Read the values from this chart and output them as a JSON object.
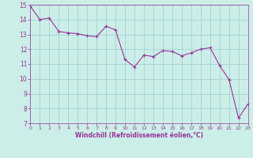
{
  "x": [
    0,
    1,
    2,
    3,
    4,
    5,
    6,
    7,
    8,
    9,
    10,
    11,
    12,
    13,
    14,
    15,
    16,
    17,
    18,
    19,
    20,
    21,
    22,
    23
  ],
  "y": [
    14.9,
    14.0,
    14.1,
    13.2,
    13.1,
    13.05,
    12.9,
    12.85,
    13.55,
    13.3,
    11.3,
    10.8,
    11.6,
    11.5,
    11.9,
    11.85,
    11.55,
    11.75,
    12.0,
    12.1,
    10.9,
    9.95,
    7.35,
    8.3
  ],
  "xlim": [
    0,
    23
  ],
  "ylim": [
    7,
    15
  ],
  "yticks": [
    7,
    8,
    9,
    10,
    11,
    12,
    13,
    14,
    15
  ],
  "xticks": [
    0,
    1,
    2,
    3,
    4,
    5,
    6,
    7,
    8,
    9,
    10,
    11,
    12,
    13,
    14,
    15,
    16,
    17,
    18,
    19,
    20,
    21,
    22,
    23
  ],
  "xlabel": "Windchill (Refroidissement éolien,°C)",
  "line_color": "#993399",
  "marker": "+",
  "marker_size": 3,
  "bg_color": "#cceee8",
  "grid_color": "#99cccc",
  "tick_color": "#993399",
  "label_color": "#993399"
}
